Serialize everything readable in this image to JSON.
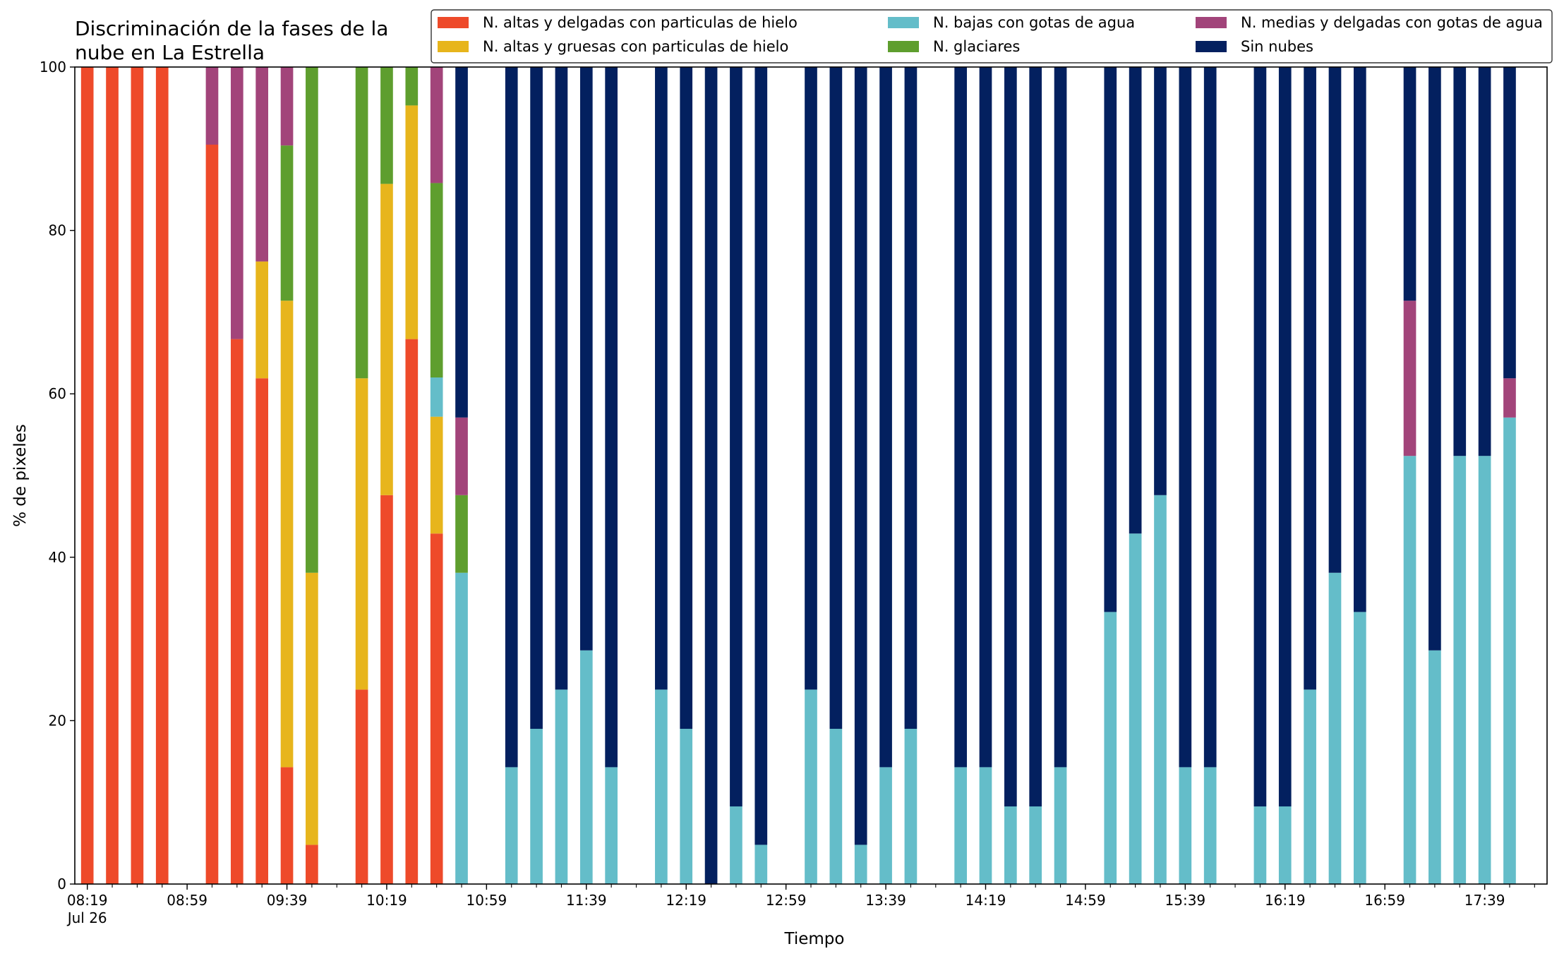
{
  "chart_data": {
    "type": "bar",
    "stacked": true,
    "title_line1": "Discriminación de la fases de la",
    "title_line2": "nube en La Estrella",
    "xlabel": "Tiempo",
    "ylabel": "% de pixeles",
    "ylim": [
      0,
      100
    ],
    "yticks": [
      0,
      20,
      40,
      60,
      80,
      100
    ],
    "xlim": [
      0,
      59
    ],
    "xtick_labels": [
      {
        "x": 0.5,
        "label": "08:19",
        "sub": "Jul 26"
      },
      {
        "x": 4.5,
        "label": "08:59"
      },
      {
        "x": 8.5,
        "label": "09:39"
      },
      {
        "x": 12.5,
        "label": "10:19"
      },
      {
        "x": 16.5,
        "label": "10:59"
      },
      {
        "x": 20.5,
        "label": "11:39"
      },
      {
        "x": 24.5,
        "label": "12:19"
      },
      {
        "x": 28.5,
        "label": "12:59"
      },
      {
        "x": 32.5,
        "label": "13:39"
      },
      {
        "x": 36.5,
        "label": "14:19"
      },
      {
        "x": 40.5,
        "label": "14:59"
      },
      {
        "x": 44.5,
        "label": "15:39"
      },
      {
        "x": 48.5,
        "label": "16:19"
      },
      {
        "x": 52.5,
        "label": "16:59"
      },
      {
        "x": 56.5,
        "label": "17:39"
      }
    ],
    "legend_position": "top-right",
    "legend_order": [
      "altas_delgadas",
      "altas_gruesas",
      "bajas_agua",
      "glaciares",
      "medias_agua",
      "sin_nubes"
    ],
    "series": [
      {
        "key": "altas_delgadas",
        "name": "N. altas y delgadas con particulas de hielo",
        "color": "#ee4a2a"
      },
      {
        "key": "altas_gruesas",
        "name": "N. altas y gruesas con particulas de hielo",
        "color": "#e7b51c"
      },
      {
        "key": "bajas_agua",
        "name": "N. bajas con gotas de agua",
        "color": "#64bdc9"
      },
      {
        "key": "glaciares",
        "name": "N. glaciares",
        "color": "#5e9e2e"
      },
      {
        "key": "medias_agua",
        "name": "N. medias y delgadas con gotas de agua",
        "color": "#a2447a"
      },
      {
        "key": "sin_nubes",
        "name": "Sin nubes",
        "color": "#03205f"
      }
    ],
    "stack_order": [
      "altas_delgadas",
      "altas_gruesas",
      "bajas_agua",
      "glaciares",
      "medias_agua",
      "sin_nubes"
    ],
    "bars": [
      {
        "x": 0.5,
        "time": "08:19",
        "altas_delgadas": 100
      },
      {
        "x": 1.5,
        "time": "08:29",
        "altas_delgadas": 100
      },
      {
        "x": 2.5,
        "time": "08:39",
        "altas_delgadas": 100
      },
      {
        "x": 3.5,
        "time": "08:49",
        "altas_delgadas": 100
      },
      {
        "x": 5.5,
        "time": "09:09",
        "altas_delgadas": 90.5,
        "medias_agua": 9.5
      },
      {
        "x": 6.5,
        "time": "09:19",
        "altas_delgadas": 66.7,
        "medias_agua": 33.3
      },
      {
        "x": 7.5,
        "time": "09:29",
        "altas_delgadas": 61.9,
        "altas_gruesas": 14.3,
        "medias_agua": 23.8
      },
      {
        "x": 8.5,
        "time": "09:39",
        "altas_delgadas": 14.3,
        "altas_gruesas": 57.1,
        "glaciares": 19.0,
        "medias_agua": 9.6
      },
      {
        "x": 9.5,
        "time": "09:49",
        "altas_delgadas": 4.8,
        "altas_gruesas": 33.3,
        "glaciares": 61.9
      },
      {
        "x": 11.5,
        "time": "10:09",
        "altas_delgadas": 23.8,
        "altas_gruesas": 38.1,
        "glaciares": 38.1
      },
      {
        "x": 12.5,
        "time": "10:19",
        "altas_delgadas": 47.6,
        "altas_gruesas": 38.1,
        "glaciares": 14.3
      },
      {
        "x": 13.5,
        "time": "10:29",
        "altas_delgadas": 66.7,
        "altas_gruesas": 28.6,
        "glaciares": 4.7
      },
      {
        "x": 14.5,
        "time": "10:39",
        "altas_delgadas": 42.9,
        "altas_gruesas": 14.3,
        "bajas_agua": 4.8,
        "glaciares": 23.8,
        "medias_agua": 14.2
      },
      {
        "x": 15.5,
        "time": "10:49",
        "bajas_agua": 38.1,
        "glaciares": 9.5,
        "medias_agua": 9.5,
        "sin_nubes": 42.9
      },
      {
        "x": 17.5,
        "time": "11:09",
        "bajas_agua": 14.3,
        "sin_nubes": 85.7
      },
      {
        "x": 18.5,
        "time": "11:19",
        "bajas_agua": 19.0,
        "sin_nubes": 81.0
      },
      {
        "x": 19.5,
        "time": "11:29",
        "bajas_agua": 23.8,
        "sin_nubes": 76.2
      },
      {
        "x": 20.5,
        "time": "11:39",
        "bajas_agua": 28.6,
        "sin_nubes": 71.4
      },
      {
        "x": 21.5,
        "time": "11:49",
        "bajas_agua": 14.3,
        "sin_nubes": 85.7
      },
      {
        "x": 23.5,
        "time": "12:09",
        "bajas_agua": 23.8,
        "sin_nubes": 76.2
      },
      {
        "x": 24.5,
        "time": "12:19",
        "bajas_agua": 19.0,
        "sin_nubes": 81.0
      },
      {
        "x": 25.5,
        "time": "12:29",
        "sin_nubes": 100
      },
      {
        "x": 26.5,
        "time": "12:39",
        "bajas_agua": 9.5,
        "sin_nubes": 90.5
      },
      {
        "x": 27.5,
        "time": "12:49",
        "bajas_agua": 4.8,
        "sin_nubes": 95.2
      },
      {
        "x": 29.5,
        "time": "13:09",
        "bajas_agua": 23.8,
        "sin_nubes": 76.2
      },
      {
        "x": 30.5,
        "time": "13:19",
        "bajas_agua": 19.0,
        "sin_nubes": 81.0
      },
      {
        "x": 31.5,
        "time": "13:29",
        "bajas_agua": 4.8,
        "sin_nubes": 95.2
      },
      {
        "x": 32.5,
        "time": "13:39",
        "bajas_agua": 14.3,
        "sin_nubes": 85.7
      },
      {
        "x": 33.5,
        "time": "13:49",
        "bajas_agua": 19.0,
        "sin_nubes": 81.0
      },
      {
        "x": 35.5,
        "time": "14:09",
        "bajas_agua": 14.3,
        "sin_nubes": 85.7
      },
      {
        "x": 36.5,
        "time": "14:19",
        "bajas_agua": 14.3,
        "sin_nubes": 85.7
      },
      {
        "x": 37.5,
        "time": "14:29",
        "bajas_agua": 9.5,
        "sin_nubes": 90.5
      },
      {
        "x": 38.5,
        "time": "14:39",
        "bajas_agua": 9.5,
        "sin_nubes": 90.5
      },
      {
        "x": 39.5,
        "time": "14:49",
        "bajas_agua": 14.3,
        "sin_nubes": 85.7
      },
      {
        "x": 41.5,
        "time": "15:09",
        "bajas_agua": 33.3,
        "sin_nubes": 66.7
      },
      {
        "x": 42.5,
        "time": "15:19",
        "bajas_agua": 42.9,
        "sin_nubes": 57.1
      },
      {
        "x": 43.5,
        "time": "15:29",
        "bajas_agua": 47.6,
        "sin_nubes": 52.4
      },
      {
        "x": 44.5,
        "time": "15:39",
        "bajas_agua": 14.3,
        "sin_nubes": 85.7
      },
      {
        "x": 45.5,
        "time": "15:49",
        "bajas_agua": 14.3,
        "sin_nubes": 85.7
      },
      {
        "x": 47.5,
        "time": "16:09",
        "bajas_agua": 9.5,
        "sin_nubes": 90.5
      },
      {
        "x": 48.5,
        "time": "16:19",
        "bajas_agua": 9.5,
        "sin_nubes": 90.5
      },
      {
        "x": 49.5,
        "time": "16:29",
        "bajas_agua": 23.8,
        "sin_nubes": 76.2
      },
      {
        "x": 50.5,
        "time": "16:39",
        "bajas_agua": 38.1,
        "sin_nubes": 61.9
      },
      {
        "x": 51.5,
        "time": "16:49",
        "bajas_agua": 33.3,
        "sin_nubes": 66.7
      },
      {
        "x": 53.5,
        "time": "17:09",
        "bajas_agua": 52.4,
        "medias_agua": 19.0,
        "sin_nubes": 28.6
      },
      {
        "x": 54.5,
        "time": "17:19",
        "bajas_agua": 28.6,
        "sin_nubes": 71.4
      },
      {
        "x": 55.5,
        "time": "17:29",
        "bajas_agua": 52.4,
        "sin_nubes": 47.6
      },
      {
        "x": 56.5,
        "time": "17:39",
        "bajas_agua": 52.4,
        "sin_nubes": 47.6
      },
      {
        "x": 57.5,
        "time": "17:49",
        "bajas_agua": 57.1,
        "medias_agua": 4.8,
        "sin_nubes": 38.1
      }
    ]
  }
}
